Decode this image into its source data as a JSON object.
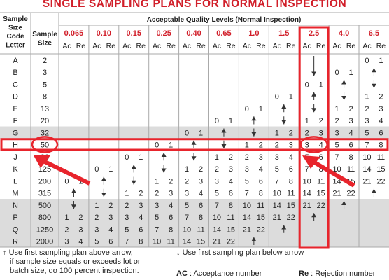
{
  "title": "SINGLE SAMPLING PLANS FOR NORMAL INSPECTION",
  "headers": {
    "code_letter": [
      "Sample",
      "Size",
      "Code",
      "Letter"
    ],
    "sample_size": [
      "Sample",
      "Size"
    ],
    "aql_title": "Acceptable Quality Levels (Normal Inspection)",
    "aql_levels": [
      "0.065",
      "0.10",
      "0.15",
      "0.25",
      "0.40",
      "0.65",
      "1.0",
      "1.5",
      "2.5",
      "4.0",
      "6.5"
    ],
    "ac_label": "Ac",
    "re_label": "Re"
  },
  "rows": [
    {
      "code": "A",
      "size": "2",
      "cells": [
        "",
        "",
        "",
        "",
        "",
        "",
        "",
        "",
        "dn",
        "",
        "0 1"
      ]
    },
    {
      "code": "B",
      "size": "3",
      "cells": [
        "",
        "",
        "",
        "",
        "",
        "",
        "",
        "",
        "dn",
        "0 1",
        "up"
      ]
    },
    {
      "code": "C",
      "size": "5",
      "cells": [
        "",
        "",
        "",
        "",
        "",
        "",
        "",
        "",
        "0 1",
        "up",
        "dn"
      ]
    },
    {
      "code": "D",
      "size": "8",
      "cells": [
        "",
        "",
        "",
        "",
        "",
        "",
        "",
        "0 1",
        "up",
        "dn",
        "1 2"
      ]
    },
    {
      "code": "E",
      "size": "13",
      "cells": [
        "",
        "",
        "",
        "",
        "",
        "",
        "0 1",
        "up",
        "dn",
        "1 2",
        "2 3"
      ]
    },
    {
      "code": "F",
      "size": "20",
      "cells": [
        "",
        "",
        "",
        "",
        "",
        "0 1",
        "up",
        "dn",
        "1 2",
        "2 3",
        "3 4"
      ]
    },
    {
      "code": "G",
      "size": "32",
      "cells": [
        "",
        "",
        "",
        "",
        "0 1",
        "up",
        "dn",
        "1 2",
        "2 3",
        "3 4",
        "5 6"
      ]
    },
    {
      "code": "H",
      "size": "50",
      "cells": [
        "",
        "",
        "",
        "0 1",
        "up",
        "dn",
        "1 2",
        "2 3",
        "3 4",
        "5 6",
        "7 8"
      ]
    },
    {
      "code": "J",
      "size": "80",
      "cells": [
        "",
        "",
        "0 1",
        "up",
        "dn",
        "1 2",
        "2 3",
        "3 4",
        "5 6",
        "7 8",
        "10 11"
      ]
    },
    {
      "code": "K",
      "size": "125",
      "cells": [
        "",
        "0 1",
        "up",
        "dn",
        "1 2",
        "2 3",
        "3 4",
        "5 6",
        "7 8",
        "10 11",
        "14 15"
      ]
    },
    {
      "code": "L",
      "size": "200",
      "cells": [
        "0 1",
        "up",
        "dn",
        "1 2",
        "2 3",
        "3 4",
        "5 6",
        "7 8",
        "10 11",
        "14 15",
        "21 22"
      ]
    },
    {
      "code": "M",
      "size": "315",
      "cells": [
        "up",
        "dn",
        "1 2",
        "2 3",
        "3 4",
        "5 6",
        "7 8",
        "10 11",
        "14 15",
        "21 22",
        "up"
      ]
    },
    {
      "code": "N",
      "size": "500",
      "cells": [
        "dn",
        "1 2",
        "2 3",
        "3 4",
        "5 6",
        "7 8",
        "10 11",
        "14 15",
        "21 22",
        "up",
        ""
      ]
    },
    {
      "code": "P",
      "size": "800",
      "cells": [
        "1 2",
        "2 3",
        "3 4",
        "5 6",
        "7 8",
        "10 11",
        "14 15",
        "21 22",
        "up",
        "",
        ""
      ]
    },
    {
      "code": "Q",
      "size": "1250",
      "cells": [
        "2 3",
        "3 4",
        "5 6",
        "7 8",
        "10 11",
        "14 15",
        "21 22",
        "up",
        "",
        "",
        ""
      ]
    },
    {
      "code": "R",
      "size": "2000",
      "cells": [
        "3 4",
        "5 6",
        "7 8",
        "10 11",
        "14 15",
        "21 22",
        "up",
        "",
        "",
        "",
        ""
      ]
    }
  ],
  "footnotes": {
    "up_note": [
      "Use first sampling plan above arrow,",
      "if sample size equals or exceeds lot or",
      "batch size, do 100 percent inspection."
    ],
    "down_note": "Use first sampling plan below arrow",
    "ac_def_label": "AC",
    "ac_def_text": ": Acceptance number",
    "re_def_label": "Re",
    "re_def_text": ": Rejection number"
  },
  "colors": {
    "title": "#d11f2a",
    "aql_values": "#d11f2a",
    "highlight": "#e8242c",
    "shaded_row": "#dcdcdc",
    "grid": "#aaaaaa"
  },
  "highlights": {
    "row_code": "H",
    "column_aql": "2.5",
    "arrows": "sample size 50 and result cell Ac 3 / Re 4"
  }
}
